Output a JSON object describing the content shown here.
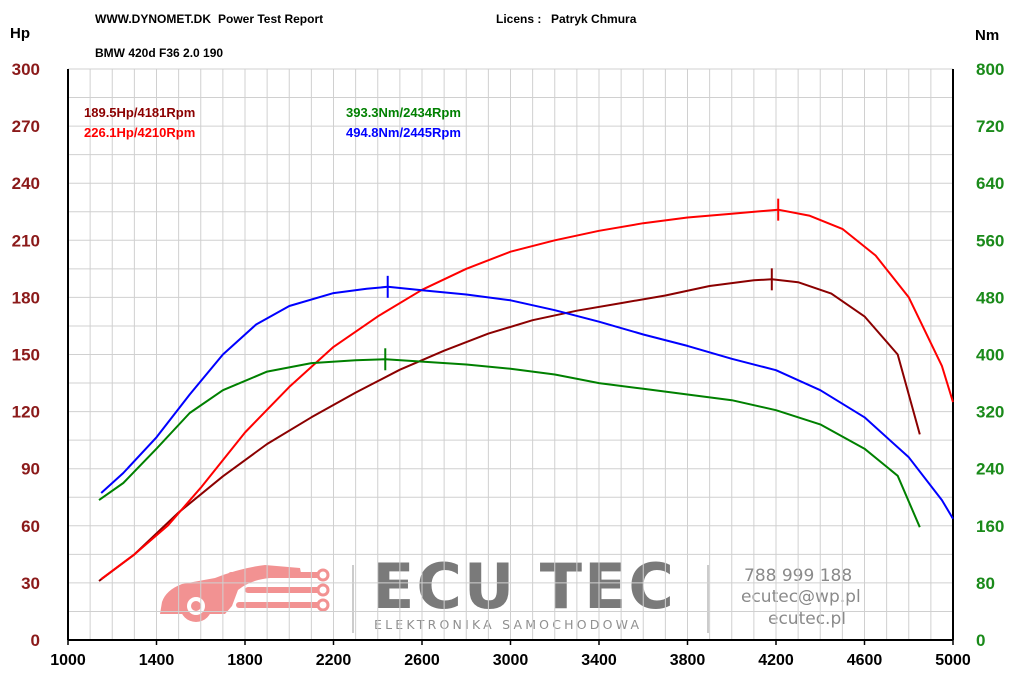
{
  "header": {
    "site": "WWW.DYNOMET.DK",
    "report": "Power Test Report",
    "licens_label": "Licens :",
    "licens_name": "Patryk Chmura",
    "car": "BMW 420d F36 2.0 190"
  },
  "branding": {
    "name": "ECU TEC",
    "tagline": "ELEKTRONIKA SAMOCHODOWA",
    "phone": "788 999 188",
    "email": "ecutec@wp.pl",
    "web": "ecutec.pl",
    "logo_color": "#f08080"
  },
  "chart_data": {
    "type": "line",
    "x_ticks": [
      "1000",
      "1400",
      "1800",
      "2200",
      "2600",
      "3000",
      "3400",
      "3800",
      "4200",
      "4600",
      "5000"
    ],
    "y_left_unit": "Hp",
    "y_right_unit": "Nm",
    "y_left_ticks": [
      "0",
      "30",
      "60",
      "90",
      "120",
      "150",
      "180",
      "210",
      "240",
      "270",
      "300"
    ],
    "y_right_ticks": [
      "0",
      "80",
      "160",
      "240",
      "320",
      "400",
      "480",
      "560",
      "640",
      "720",
      "800"
    ],
    "xlim": [
      1000,
      5000
    ],
    "ylim_left": [
      0,
      300
    ],
    "ylim_right": [
      0,
      800
    ],
    "grid": true,
    "annotations": [
      {
        "text": "189.5Hp/4181Rpm",
        "color": "#8b0000"
      },
      {
        "text": "226.1Hp/4210Rpm",
        "color": "#ff0000"
      },
      {
        "text": "393.3Nm/2434Rpm",
        "color": "#008000"
      },
      {
        "text": "494.8Nm/2445Rpm",
        "color": "#0000ff"
      }
    ],
    "series": [
      {
        "color": "#8b0000",
        "axis": "left",
        "peak": [
          4181,
          189.5
        ],
        "points": [
          [
            1140,
            31
          ],
          [
            1300,
            45
          ],
          [
            1500,
            67
          ],
          [
            1700,
            86
          ],
          [
            1900,
            103
          ],
          [
            2100,
            117
          ],
          [
            2300,
            130
          ],
          [
            2500,
            142
          ],
          [
            2700,
            152
          ],
          [
            2900,
            161
          ],
          [
            3100,
            168
          ],
          [
            3300,
            173
          ],
          [
            3500,
            177
          ],
          [
            3700,
            181
          ],
          [
            3900,
            186
          ],
          [
            4100,
            189
          ],
          [
            4181,
            189.5
          ],
          [
            4300,
            188
          ],
          [
            4450,
            182
          ],
          [
            4600,
            170
          ],
          [
            4750,
            150
          ],
          [
            4850,
            108
          ]
        ]
      },
      {
        "color": "#ff0000",
        "axis": "left",
        "peak": [
          4210,
          226.1
        ],
        "points": [
          [
            1150,
            32
          ],
          [
            1300,
            45
          ],
          [
            1450,
            60
          ],
          [
            1600,
            80
          ],
          [
            1800,
            109
          ],
          [
            2000,
            133
          ],
          [
            2200,
            154
          ],
          [
            2400,
            170
          ],
          [
            2600,
            184
          ],
          [
            2800,
            195
          ],
          [
            3000,
            204
          ],
          [
            3200,
            210
          ],
          [
            3400,
            215
          ],
          [
            3600,
            219
          ],
          [
            3800,
            222
          ],
          [
            4000,
            224
          ],
          [
            4210,
            226.1
          ],
          [
            4350,
            223
          ],
          [
            4500,
            216
          ],
          [
            4650,
            202
          ],
          [
            4800,
            180
          ],
          [
            4950,
            144
          ],
          [
            5000,
            125
          ]
        ]
      },
      {
        "color": "#008000",
        "axis": "right",
        "peak": [
          2434,
          393.3
        ],
        "points": [
          [
            1140,
            196
          ],
          [
            1250,
            220
          ],
          [
            1400,
            268
          ],
          [
            1550,
            318
          ],
          [
            1700,
            350
          ],
          [
            1900,
            376
          ],
          [
            2100,
            388
          ],
          [
            2300,
            392
          ],
          [
            2434,
            393.3
          ],
          [
            2600,
            390
          ],
          [
            2800,
            386
          ],
          [
            3000,
            380
          ],
          [
            3200,
            372
          ],
          [
            3400,
            360
          ],
          [
            3600,
            352
          ],
          [
            3800,
            344
          ],
          [
            4000,
            336
          ],
          [
            4200,
            322
          ],
          [
            4400,
            302
          ],
          [
            4600,
            268
          ],
          [
            4750,
            230
          ],
          [
            4850,
            158
          ]
        ]
      },
      {
        "color": "#0000ff",
        "axis": "right",
        "peak": [
          2445,
          494.8
        ],
        "points": [
          [
            1150,
            206
          ],
          [
            1250,
            234
          ],
          [
            1400,
            284
          ],
          [
            1550,
            344
          ],
          [
            1700,
            400
          ],
          [
            1850,
            442
          ],
          [
            2000,
            468
          ],
          [
            2200,
            486
          ],
          [
            2350,
            492
          ],
          [
            2445,
            494.8
          ],
          [
            2600,
            490
          ],
          [
            2800,
            484
          ],
          [
            3000,
            476
          ],
          [
            3200,
            462
          ],
          [
            3400,
            446
          ],
          [
            3600,
            428
          ],
          [
            3800,
            412
          ],
          [
            4000,
            394
          ],
          [
            4200,
            378
          ],
          [
            4400,
            350
          ],
          [
            4600,
            312
          ],
          [
            4800,
            256
          ],
          [
            4950,
            196
          ],
          [
            5000,
            170
          ]
        ]
      }
    ]
  }
}
